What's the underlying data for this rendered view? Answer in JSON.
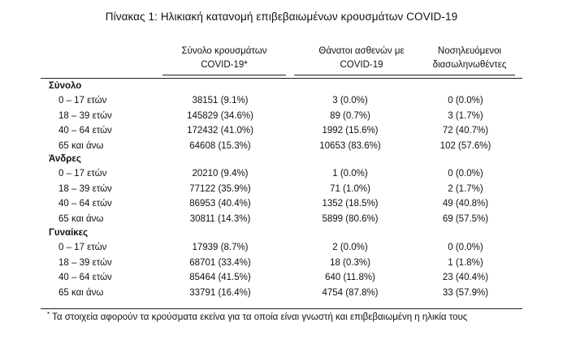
{
  "title": "Πίνακας 1: Ηλικιακή κατανομή επιβεβαιωμένων κρουσμάτων COVID-19",
  "columns": [
    {
      "line1": "Σύνολο κρουσμάτων",
      "line2": "COVID-19*"
    },
    {
      "line1": "Θάνατοι ασθενών με",
      "line2": "COVID-19"
    },
    {
      "line1": "Νοσηλευόμενοι",
      "line2": "διασωληνωθέντες"
    }
  ],
  "groups": [
    {
      "label": "Σύνολο",
      "rows": [
        {
          "age": "0 – 17 ετών",
          "cases": "38151 (9.1%)",
          "deaths": "3 (0.0%)",
          "intubated": "0 (0.0%)"
        },
        {
          "age": "18 – 39 ετών",
          "cases": "145829 (34.6%)",
          "deaths": "89 (0.7%)",
          "intubated": "3 (1.7%)"
        },
        {
          "age": "40 – 64 ετών",
          "cases": "172432 (41.0%)",
          "deaths": "1992 (15.6%)",
          "intubated": "72 (40.7%)"
        },
        {
          "age": "65 και άνω",
          "cases": "64608 (15.3%)",
          "deaths": "10653 (83.6%)",
          "intubated": "102 (57.6%)"
        }
      ]
    },
    {
      "label": "Άνδρες",
      "rows": [
        {
          "age": "0 – 17 ετών",
          "cases": "20210 (9.4%)",
          "deaths": "1 (0.0%)",
          "intubated": "0 (0.0%)"
        },
        {
          "age": "18 – 39 ετών",
          "cases": "77122 (35.9%)",
          "deaths": "71 (1.0%)",
          "intubated": "2 (1.7%)"
        },
        {
          "age": "40 – 64 ετών",
          "cases": "86953 (40.4%)",
          "deaths": "1352 (18.5%)",
          "intubated": "49 (40.8%)"
        },
        {
          "age": "65 και άνω",
          "cases": "30811 (14.3%)",
          "deaths": "5899 (80.6%)",
          "intubated": "69 (57.5%)"
        }
      ]
    },
    {
      "label": "Γυναίκες",
      "rows": [
        {
          "age": "0 – 17 ετών",
          "cases": "17939 (8.7%)",
          "deaths": "2 (0.0%)",
          "intubated": "0 (0.0%)"
        },
        {
          "age": "18 – 39 ετών",
          "cases": "68701 (33.4%)",
          "deaths": "18 (0.3%)",
          "intubated": "1 (1.8%)"
        },
        {
          "age": "40 – 64 ετών",
          "cases": "85464 (41.5%)",
          "deaths": "640 (11.8%)",
          "intubated": "23 (40.4%)"
        },
        {
          "age": "65 και άνω",
          "cases": "33791 (16.4%)",
          "deaths": "4754 (87.8%)",
          "intubated": "33 (57.9%)"
        }
      ]
    }
  ],
  "footnote": {
    "marker": "*",
    "text": "Τα στοιχεία αφορούν τα κρούσματα εκείνα για τα οποία είναι γνωστή και επιβεβαιωμένη η ηλικία τους"
  }
}
